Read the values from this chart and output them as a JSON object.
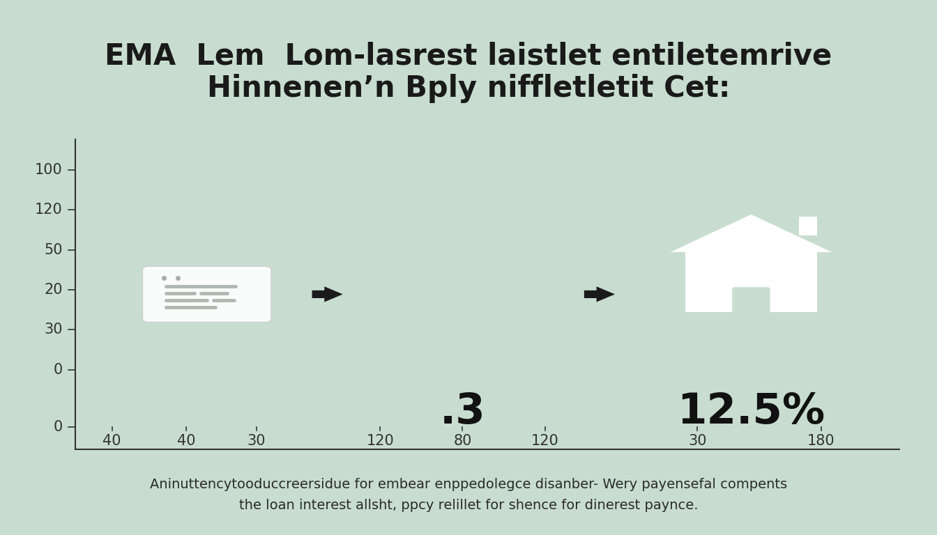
{
  "background_color": "#c8ddd0",
  "title_line1": "EMA  Lem  Lom-lasrest laistlet entiletemrive",
  "title_line2": "Hinnenen’n Bply niffletletit Cet:",
  "title_fontsize": 30,
  "title_color": "#1a1a1a",
  "subtitle_line1": "Aninuttencytooduccreersidue for embear enppedolegce disanber- Wery payensefal compents",
  "subtitle_line2": "the loan interest allsht, ppcy relillet for shence for dinerest paynce.",
  "subtitle_fontsize": 14,
  "subtitle_color": "#2a2a2a",
  "value1": ".3",
  "value2": "12.5%",
  "value_fontsize": 44,
  "value_color": "#111111",
  "x_tick_labels": [
    "40",
    "40",
    "30",
    "120",
    "80",
    "120",
    "30",
    "180"
  ],
  "x_tick_positions": [
    0.45,
    1.35,
    2.2,
    3.7,
    4.7,
    5.7,
    7.55,
    9.05
  ],
  "y_tick_labels": [
    "100",
    "120",
    "50",
    "20",
    "30",
    "0",
    "0"
  ],
  "y_tick_positions": [
    5.8,
    4.9,
    4.0,
    3.1,
    2.2,
    1.3,
    0.0
  ],
  "axis_color": "#333333",
  "axis_fontsize": 15,
  "arrow_color": "#1a1a1a",
  "house_color": "white",
  "doc_color": "white",
  "doc_line_color": "#b0b8b4"
}
